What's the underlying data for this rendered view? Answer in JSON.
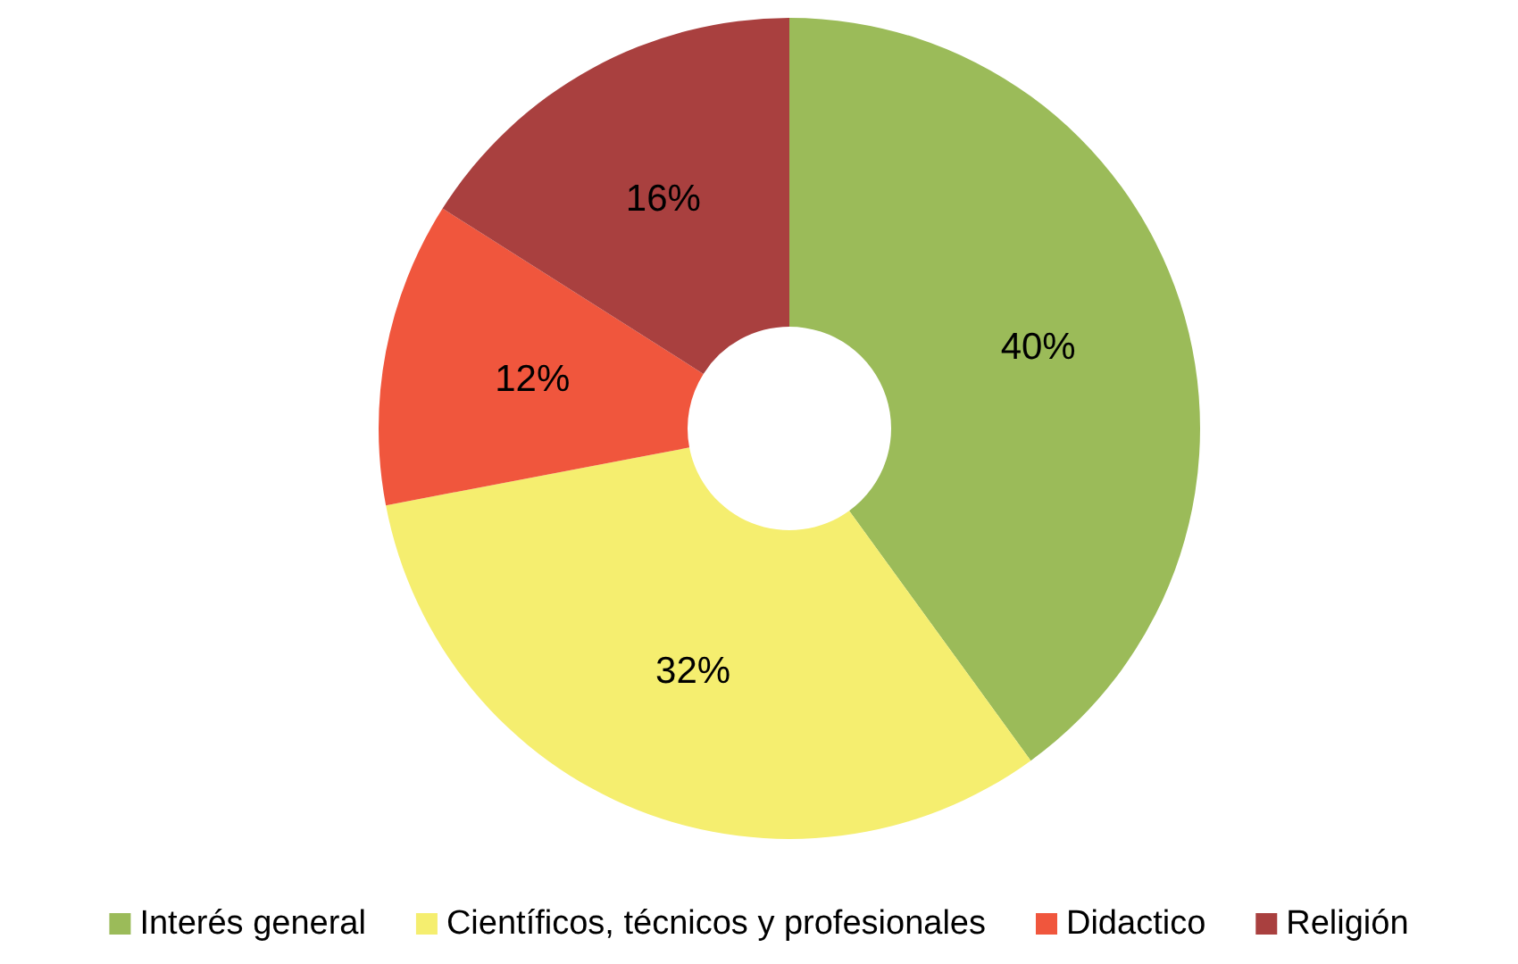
{
  "chart_data": {
    "type": "donut",
    "categories": [
      "Interés general",
      "Científicos, técnicos y profesionales",
      "Didactico",
      "Religión"
    ],
    "values": [
      40,
      32,
      12,
      16
    ],
    "value_labels": [
      "40%",
      "32%",
      "12%",
      "16%"
    ],
    "colors": [
      "#9bbb59",
      "#f5ee6f",
      "#f0563d",
      "#a9403f"
    ],
    "legend": "bottom"
  }
}
